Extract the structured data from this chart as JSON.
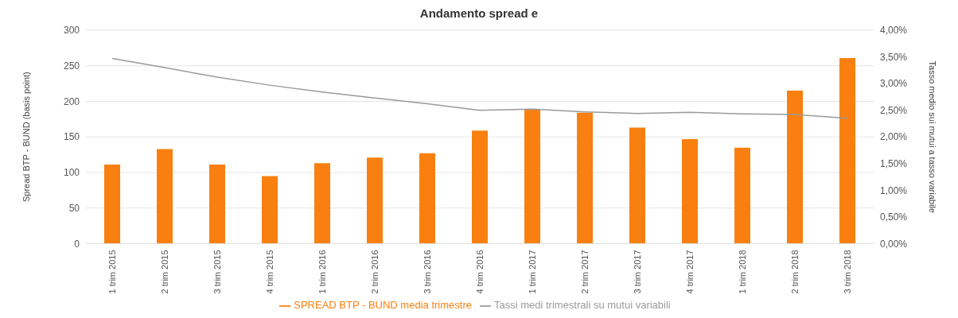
{
  "chart_data": {
    "type": "bar",
    "title": "Andamento spread e",
    "ylabel": "Spread BTP - BUND (basis point)",
    "y2label": "Tasso medio sui mutui a tasso variabile",
    "categories": [
      "1 trim 2015",
      "2 trim 2015",
      "3 trim 2015",
      "4 trim 2015",
      "1 trim 2016",
      "2 trim 2016",
      "3 trim 2016",
      "4 trim 2016",
      "1 trim 2017",
      "2 trim 2017",
      "3 trim 2017",
      "4 trim 2017",
      "1 trim 2018",
      "2 trim 2018",
      "3 trim 2018"
    ],
    "series": [
      {
        "name": "SPREAD BTP - BUND media trimestre",
        "color": "#f98010",
        "values": [
          111,
          133,
          111,
          95,
          113,
          121,
          127,
          159,
          189,
          184,
          163,
          147,
          135,
          215,
          261
        ]
      },
      {
        "name": "Tassi medi trimestrali su mutui variabili",
        "type": "line",
        "axis": "y2",
        "color": "#9a9a9a",
        "values": [
          3.47,
          3.3,
          3.12,
          2.97,
          2.84,
          2.73,
          2.62,
          2.5,
          2.52,
          2.47,
          2.44,
          2.46,
          2.43,
          2.42,
          2.35
        ]
      }
    ],
    "ylim": [
      0,
      300
    ],
    "yticks": [
      0,
      50,
      100,
      150,
      200,
      250,
      300
    ],
    "y2lim": [
      0,
      4
    ],
    "y2ticks": [
      {
        "value": 0,
        "label": "0,00%"
      },
      {
        "value": 0.5,
        "label": "0,50%"
      },
      {
        "value": 1,
        "label": "1,00%"
      },
      {
        "value": 1.5,
        "label": "1,50%"
      },
      {
        "value": 2,
        "label": "2,00%"
      },
      {
        "value": 2.5,
        "label": "2,50%"
      },
      {
        "value": 3,
        "label": "3,00%"
      },
      {
        "value": 3.5,
        "label": "3,50%"
      },
      {
        "value": 4,
        "label": "4,00%"
      }
    ],
    "grid": "y",
    "legend": "bottom",
    "marker": "none"
  }
}
